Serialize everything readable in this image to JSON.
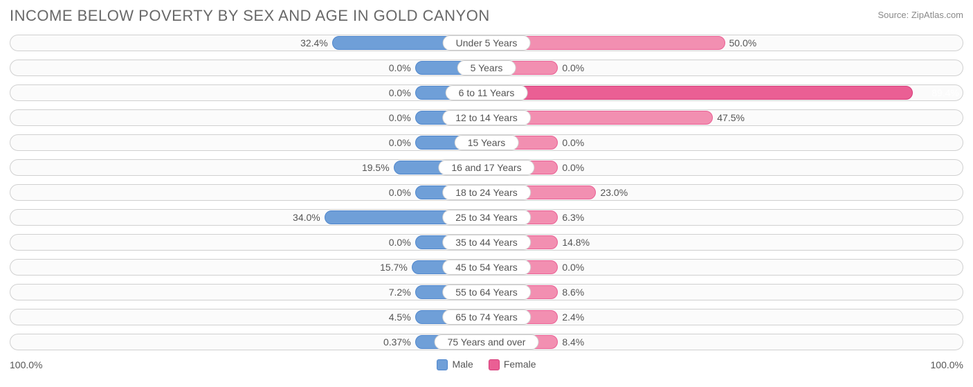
{
  "title": "INCOME BELOW POVERTY BY SEX AND AGE IN GOLD CANYON",
  "source": "Source: ZipAtlas.com",
  "axis_left_label": "100.0%",
  "axis_right_label": "100.0%",
  "legend": {
    "male": "Male",
    "female": "Female"
  },
  "colors": {
    "male_fill": "#6f9fd8",
    "male_border": "#4f86cc",
    "female_fill": "#f28fb1",
    "female_border": "#ea5f94",
    "female_max_fill": "#ea5f94",
    "female_max_border": "#d63c7a",
    "track_border": "#d0d0d0",
    "track_bg": "#fbfbfb",
    "text": "#555555"
  },
  "chart": {
    "type": "diverging-bar",
    "min_bar_pct": 15,
    "rows": [
      {
        "category": "Under 5 Years",
        "male": 32.4,
        "male_label": "32.4%",
        "female": 50.0,
        "female_label": "50.0%"
      },
      {
        "category": "5 Years",
        "male": 0.0,
        "male_label": "0.0%",
        "female": 0.0,
        "female_label": "0.0%"
      },
      {
        "category": "6 to 11 Years",
        "male": 0.0,
        "male_label": "0.0%",
        "female": 89.4,
        "female_label": "89.4%",
        "female_max": true
      },
      {
        "category": "12 to 14 Years",
        "male": 0.0,
        "male_label": "0.0%",
        "female": 47.5,
        "female_label": "47.5%"
      },
      {
        "category": "15 Years",
        "male": 0.0,
        "male_label": "0.0%",
        "female": 0.0,
        "female_label": "0.0%"
      },
      {
        "category": "16 and 17 Years",
        "male": 19.5,
        "male_label": "19.5%",
        "female": 0.0,
        "female_label": "0.0%"
      },
      {
        "category": "18 to 24 Years",
        "male": 0.0,
        "male_label": "0.0%",
        "female": 23.0,
        "female_label": "23.0%"
      },
      {
        "category": "25 to 34 Years",
        "male": 34.0,
        "male_label": "34.0%",
        "female": 6.3,
        "female_label": "6.3%"
      },
      {
        "category": "35 to 44 Years",
        "male": 0.0,
        "male_label": "0.0%",
        "female": 14.8,
        "female_label": "14.8%"
      },
      {
        "category": "45 to 54 Years",
        "male": 15.7,
        "male_label": "15.7%",
        "female": 0.0,
        "female_label": "0.0%"
      },
      {
        "category": "55 to 64 Years",
        "male": 7.2,
        "male_label": "7.2%",
        "female": 8.6,
        "female_label": "8.6%"
      },
      {
        "category": "65 to 74 Years",
        "male": 4.5,
        "male_label": "4.5%",
        "female": 2.4,
        "female_label": "2.4%"
      },
      {
        "category": "75 Years and over",
        "male": 0.37,
        "male_label": "0.37%",
        "female": 8.4,
        "female_label": "8.4%"
      }
    ]
  }
}
